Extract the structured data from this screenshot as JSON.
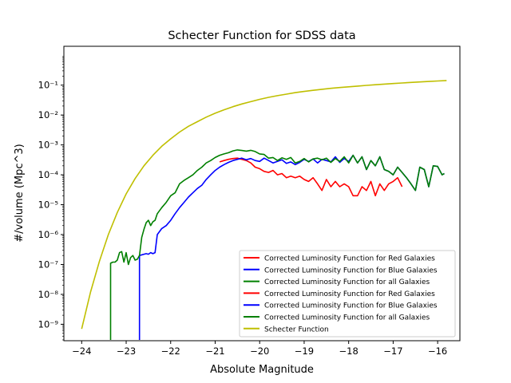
{
  "chart_data": {
    "type": "line",
    "title": "Schecter Function for SDSS data",
    "xlabel": "Absolute Magnitude",
    "ylabel": "#/volume (Mpc^3)",
    "xlim": [
      -24.4,
      -15.5
    ],
    "ylim_log10": [
      -9.55,
      0.3
    ],
    "yscale": "log",
    "grid": false,
    "legend_position": "lower-right",
    "x_ticks": [
      {
        "value": -24,
        "label": "−24"
      },
      {
        "value": -23,
        "label": "−23"
      },
      {
        "value": -22,
        "label": "−22"
      },
      {
        "value": -21,
        "label": "−21"
      },
      {
        "value": -20,
        "label": "−20"
      },
      {
        "value": -19,
        "label": "−19"
      },
      {
        "value": -18,
        "label": "−18"
      },
      {
        "value": -17,
        "label": "−17"
      },
      {
        "value": -16,
        "label": "−16"
      }
    ],
    "y_ticks": [
      {
        "exp": -9,
        "label": "10⁻⁹"
      },
      {
        "exp": -8,
        "label": "10⁻⁸"
      },
      {
        "exp": -7,
        "label": "10⁻⁷"
      },
      {
        "exp": -6,
        "label": "10⁻⁶"
      },
      {
        "exp": -5,
        "label": "10⁻⁵"
      },
      {
        "exp": -4,
        "label": "10⁻⁴"
      },
      {
        "exp": -3,
        "label": "10⁻³"
      },
      {
        "exp": -2,
        "label": "10⁻²"
      },
      {
        "exp": -1,
        "label": "10⁻¹"
      }
    ],
    "series": [
      {
        "name": "Corrected Luminosity Function for Red Galaxies",
        "color": "#ff0000",
        "x": [
          -20.9,
          -20.8,
          -20.7,
          -20.6,
          -20.5,
          -20.4,
          -20.3,
          -20.2,
          -20.1,
          -20.0,
          -19.9,
          -19.8,
          -19.7,
          -19.6,
          -19.5,
          -19.4,
          -19.3,
          -19.2,
          -19.1,
          -19.0,
          -18.9,
          -18.8,
          -18.7,
          -18.6,
          -18.5,
          -18.4,
          -18.3,
          -18.2,
          -18.1,
          -18.0,
          -17.9,
          -17.8,
          -17.7,
          -17.6,
          -17.5,
          -17.4,
          -17.3,
          -17.2,
          -17.1,
          -17.0,
          -16.9,
          -16.8
        ],
        "y": [
          0.00027,
          0.0003,
          0.00033,
          0.00035,
          0.00036,
          0.00033,
          0.0003,
          0.00025,
          0.00018,
          0.00016,
          0.00013,
          0.00012,
          0.00014,
          0.0001,
          0.00011,
          8e-05,
          9e-05,
          8e-05,
          9e-05,
          7e-05,
          6e-05,
          8e-05,
          5e-05,
          3e-05,
          7e-05,
          4e-05,
          6e-05,
          4e-05,
          5e-05,
          4e-05,
          2e-05,
          2e-05,
          4e-05,
          3e-05,
          6e-05,
          2e-05,
          5e-05,
          3e-05,
          5e-05,
          6e-05,
          8e-05,
          4e-05
        ]
      },
      {
        "name": "Corrected Luminosity Function for Blue Galaxies",
        "color": "#0000ff",
        "x": [
          -22.7,
          -22.7,
          -22.7,
          -22.55,
          -22.5,
          -22.45,
          -22.4,
          -22.35,
          -22.3,
          -22.2,
          -22.1,
          -22.0,
          -21.9,
          -21.8,
          -21.7,
          -21.6,
          -21.5,
          -21.4,
          -21.3,
          -21.2,
          -21.1,
          -21.0,
          -20.9,
          -20.8,
          -20.7,
          -20.6,
          -20.5,
          -20.4,
          -20.3,
          -20.2,
          -20.1,
          -20.0,
          -19.9,
          -19.8,
          -19.7,
          -19.6,
          -19.5,
          -19.4,
          -19.3,
          -19.2,
          -19.1,
          -19.0,
          -18.9,
          -18.8,
          -18.7,
          -18.6,
          -18.5,
          -18.4,
          -18.3,
          -18.2,
          -18.1,
          -18.0,
          -17.9,
          -17.8,
          -17.7,
          -17.6,
          -17.5,
          -17.4,
          -17.3,
          -17.2,
          -17.1,
          -17.0,
          -16.9,
          -16.8,
          -16.7,
          -16.6,
          -16.5,
          -16.4,
          -16.3,
          -16.2,
          -16.1,
          -16.0,
          -15.9,
          -15.85
        ],
        "y": [
          3e-10,
          1.7e-07,
          2e-07,
          2.3e-07,
          2.2e-07,
          2.5e-07,
          2.3e-07,
          2.5e-07,
          1e-06,
          1.6e-06,
          2e-06,
          3e-06,
          5e-06,
          8e-06,
          1.2e-05,
          1.8e-05,
          2.5e-05,
          3.5e-05,
          4.5e-05,
          7e-05,
          0.0001,
          0.00014,
          0.00018,
          0.00022,
          0.00026,
          0.0003,
          0.00033,
          0.00036,
          0.00032,
          0.00035,
          0.0003,
          0.00028,
          0.00036,
          0.0003,
          0.00025,
          0.00028,
          0.00032,
          0.00024,
          0.00027,
          0.00022,
          0.00026,
          0.00033,
          0.00028,
          0.00034,
          0.00025,
          0.00033,
          0.0003,
          0.00027,
          0.0004,
          0.00026,
          0.00035,
          0.00028,
          0.00045,
          0.00025,
          0.0004,
          0.00015,
          0.0003,
          0.0002,
          0.0004,
          0.00015,
          0.00013,
          0.0001,
          0.00018,
          0.00012,
          8e-05,
          5e-05,
          3e-05,
          0.00018,
          0.00015,
          4e-05,
          0.0002,
          0.00019,
          0.0001,
          0.00011
        ]
      },
      {
        "name": "Corrected Luminosity Function for all Galaxies",
        "color": "#008000",
        "x": [
          -23.35,
          -23.35,
          -23.3,
          -23.25,
          -23.2,
          -23.15,
          -23.1,
          -23.05,
          -23.0,
          -22.95,
          -22.9,
          -22.85,
          -22.8,
          -22.75,
          -22.7,
          -22.65,
          -22.6,
          -22.55,
          -22.5,
          -22.45,
          -22.4,
          -22.35,
          -22.3,
          -22.2,
          -22.1,
          -22.0,
          -21.9,
          -21.8,
          -21.7,
          -21.6,
          -21.5,
          -21.4,
          -21.3,
          -21.2,
          -21.1,
          -21.0,
          -20.9,
          -20.8,
          -20.7,
          -20.6,
          -20.5,
          -20.4,
          -20.3,
          -20.2,
          -20.1,
          -20.0,
          -19.9,
          -19.8,
          -19.7,
          -19.6,
          -19.5,
          -19.4,
          -19.3,
          -19.2,
          -19.1,
          -19.0,
          -18.9,
          -18.8,
          -18.7,
          -18.6,
          -18.5,
          -18.4,
          -18.3,
          -18.2,
          -18.1,
          -18.0,
          -17.9,
          -17.8,
          -17.7,
          -17.6,
          -17.5,
          -17.4,
          -17.3,
          -17.2,
          -17.1,
          -17.0,
          -16.9,
          -16.8,
          -16.7,
          -16.6,
          -16.5,
          -16.4,
          -16.3,
          -16.2,
          -16.1,
          -16.0,
          -15.9,
          -15.85
        ],
        "y": [
          3e-10,
          1.1e-07,
          1.2e-07,
          1.2e-07,
          1.4e-07,
          2.5e-07,
          2.7e-07,
          1.2e-07,
          2.5e-07,
          1e-07,
          1.7e-07,
          2e-07,
          1.4e-07,
          1.5e-07,
          2e-07,
          8e-07,
          1.5e-06,
          2.5e-06,
          3e-06,
          2e-06,
          2.7e-06,
          3e-06,
          5e-06,
          8e-06,
          1.2e-05,
          2e-05,
          2.5e-05,
          5e-05,
          6.5e-05,
          8e-05,
          0.0001,
          0.00014,
          0.00018,
          0.00025,
          0.0003,
          0.00038,
          0.00045,
          0.0005,
          0.00055,
          0.00063,
          0.00068,
          0.00065,
          0.00062,
          0.00066,
          0.0006,
          0.0005,
          0.00048,
          0.00036,
          0.00038,
          0.0003,
          0.00037,
          0.00033,
          0.00038,
          0.00025,
          0.00028,
          0.00035,
          0.00027,
          0.00034,
          0.00036,
          0.00032,
          0.00036,
          0.00026,
          0.00035,
          0.00028,
          0.0004,
          0.00025,
          0.00045,
          0.00025,
          0.0004,
          0.00015,
          0.0003,
          0.0002,
          0.0004,
          0.00015,
          0.00013,
          0.0001,
          0.00018,
          0.00012,
          8e-05,
          5e-05,
          3e-05,
          0.00018,
          0.00015,
          4e-05,
          0.0002,
          0.00019,
          0.0001,
          0.00011
        ]
      },
      {
        "name": "Schecter Function",
        "color": "#bfbf00",
        "x": [
          -24.0,
          -23.8,
          -23.6,
          -23.4,
          -23.2,
          -23.0,
          -22.8,
          -22.6,
          -22.4,
          -22.2,
          -22.0,
          -21.8,
          -21.6,
          -21.4,
          -21.2,
          -21.0,
          -20.8,
          -20.6,
          -20.4,
          -20.2,
          -20.0,
          -19.8,
          -19.6,
          -19.4,
          -19.2,
          -19.0,
          -18.8,
          -18.6,
          -18.4,
          -18.2,
          -18.0,
          -17.8,
          -17.6,
          -17.4,
          -17.2,
          -17.0,
          -16.8,
          -16.6,
          -16.4,
          -16.2,
          -16.0,
          -15.8
        ],
        "y": [
          7e-10,
          1.2e-08,
          1.3e-07,
          1e-06,
          5.5e-06,
          2.3e-05,
          7.5e-05,
          0.0002,
          0.00045,
          0.0009,
          0.0016,
          0.0027,
          0.0042,
          0.006,
          0.0085,
          0.0115,
          0.015,
          0.019,
          0.0235,
          0.028,
          0.0335,
          0.039,
          0.0445,
          0.05,
          0.056,
          0.0615,
          0.067,
          0.0725,
          0.078,
          0.083,
          0.088,
          0.093,
          0.098,
          0.103,
          0.108,
          0.113,
          0.118,
          0.123,
          0.128,
          0.133,
          0.138,
          0.143
        ]
      }
    ],
    "legend": [
      {
        "label": "Corrected Luminosity Function for Red Galaxies",
        "color": "#ff0000"
      },
      {
        "label": "Corrected Luminosity Function for Blue Galaxies",
        "color": "#0000ff"
      },
      {
        "label": "Corrected Luminosity Function for all Galaxies",
        "color": "#008000"
      },
      {
        "label": "Corrected Luminosity Function for Red Galaxies",
        "color": "#ff0000"
      },
      {
        "label": "Corrected Luminosity Function for Blue Galaxies",
        "color": "#0000ff"
      },
      {
        "label": "Corrected Luminosity Function for all Galaxies",
        "color": "#008000"
      },
      {
        "label": "Schecter Function",
        "color": "#bfbf00"
      }
    ]
  }
}
